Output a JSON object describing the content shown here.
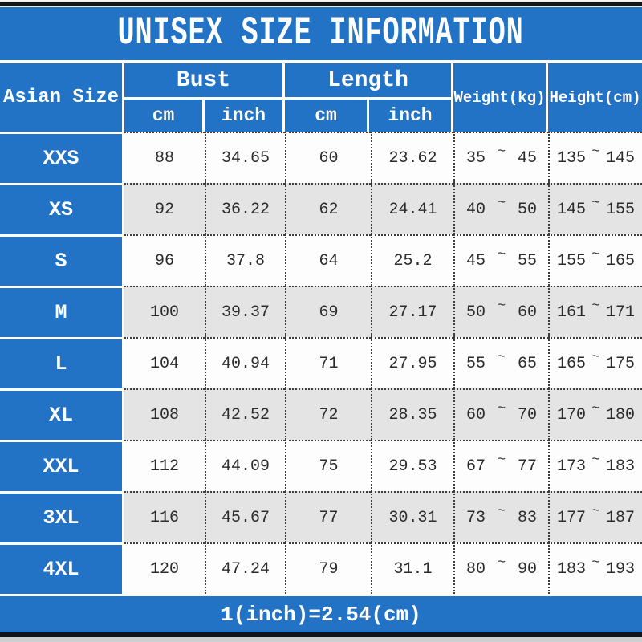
{
  "chart_data": {
    "type": "table",
    "title": "UNISEX SIZE INFORMATION",
    "corner_header": "Asian Size",
    "column_groups": [
      {
        "label": "Bust",
        "children": [
          "cm",
          "inch"
        ]
      },
      {
        "label": "Length",
        "children": [
          "cm",
          "inch"
        ]
      },
      {
        "label": "Weight(kg)",
        "children": []
      },
      {
        "label": "Height(cm)",
        "children": []
      }
    ],
    "tilde": "~",
    "rows": [
      {
        "size": "XXS",
        "bust_cm": "88",
        "bust_inch": "34.65",
        "length_cm": "60",
        "length_inch": "23.62",
        "weight_min": "35",
        "weight_max": "45",
        "height_min": "135",
        "height_max": "145"
      },
      {
        "size": "XS",
        "bust_cm": "92",
        "bust_inch": "36.22",
        "length_cm": "62",
        "length_inch": "24.41",
        "weight_min": "40",
        "weight_max": "50",
        "height_min": "145",
        "height_max": "155"
      },
      {
        "size": "S",
        "bust_cm": "96",
        "bust_inch": "37.8",
        "length_cm": "64",
        "length_inch": "25.2",
        "weight_min": "45",
        "weight_max": "55",
        "height_min": "155",
        "height_max": "165"
      },
      {
        "size": "M",
        "bust_cm": "100",
        "bust_inch": "39.37",
        "length_cm": "69",
        "length_inch": "27.17",
        "weight_min": "50",
        "weight_max": "60",
        "height_min": "161",
        "height_max": "171"
      },
      {
        "size": "L",
        "bust_cm": "104",
        "bust_inch": "40.94",
        "length_cm": "71",
        "length_inch": "27.95",
        "weight_min": "55",
        "weight_max": "65",
        "height_min": "165",
        "height_max": "175"
      },
      {
        "size": "XL",
        "bust_cm": "108",
        "bust_inch": "42.52",
        "length_cm": "72",
        "length_inch": "28.35",
        "weight_min": "60",
        "weight_max": "70",
        "height_min": "170",
        "height_max": "180"
      },
      {
        "size": "XXL",
        "bust_cm": "112",
        "bust_inch": "44.09",
        "length_cm": "75",
        "length_inch": "29.53",
        "weight_min": "67",
        "weight_max": "77",
        "height_min": "173",
        "height_max": "183"
      },
      {
        "size": "3XL",
        "bust_cm": "116",
        "bust_inch": "45.67",
        "length_cm": "77",
        "length_inch": "30.31",
        "weight_min": "73",
        "weight_max": "83",
        "height_min": "177",
        "height_max": "187"
      },
      {
        "size": "4XL",
        "bust_cm": "120",
        "bust_inch": "47.24",
        "length_cm": "79",
        "length_inch": "31.1",
        "weight_min": "80",
        "weight_max": "90",
        "height_min": "183",
        "height_max": "193"
      }
    ],
    "footer": "1(inch)=2.54(cm)",
    "layout_hints": {
      "zebra_rows": true,
      "grid": "dotted"
    }
  },
  "colors": {
    "accent_blue": "#2273c6",
    "row_alt_gray": "#e4e4e4",
    "row_white": "#fdfdfd",
    "text_dark": "#2b2b2b",
    "frame_black": "#151515"
  }
}
